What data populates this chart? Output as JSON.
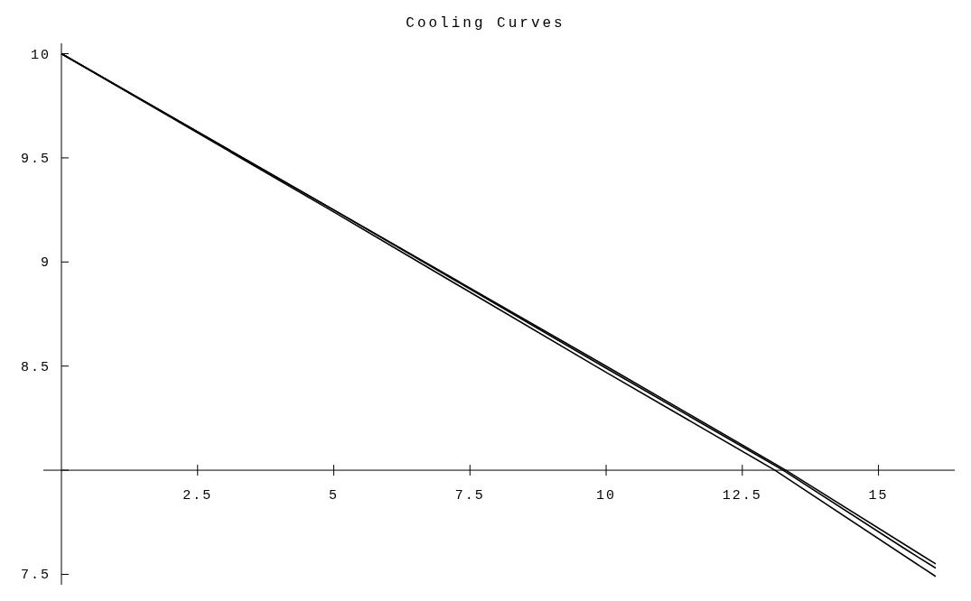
{
  "chart_data": {
    "type": "line",
    "title": "Cooling Curves",
    "xlim": [
      0,
      16.4
    ],
    "ylim": [
      7.45,
      10.05
    ],
    "xticks": [
      2.5,
      5,
      7.5,
      10,
      12.5,
      15
    ],
    "yticks": [
      7.5,
      {
        "value": 8,
        "label": null
      },
      8.5,
      9,
      9.5,
      10
    ],
    "grid": false,
    "marker": "none",
    "line_style": "solid",
    "series": [
      {
        "color": "#000000",
        "x": [
          0,
          5,
          10,
          13.1,
          16.05
        ],
        "values": [
          10,
          9.24,
          8.47,
          8,
          7.49
        ]
      },
      {
        "color": "#000000",
        "x": [
          0,
          5,
          10,
          13.25,
          15.5,
          16.05
        ],
        "values": [
          10,
          9.25,
          8.49,
          8,
          7.62,
          7.53
        ]
      },
      {
        "color": "#000000",
        "x": [
          0,
          5,
          10,
          13.3,
          16.05
        ],
        "values": [
          10,
          9.25,
          8.5,
          8,
          7.55
        ]
      }
    ]
  }
}
